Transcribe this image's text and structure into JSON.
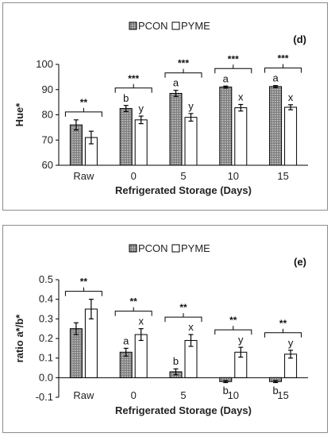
{
  "chart_data": [
    {
      "type": "bar",
      "panel_label": "(d)",
      "categories": [
        "Raw",
        "0",
        "5",
        "10",
        "15"
      ],
      "xlabel": "Refrigerated Storage (Days)",
      "ylabel": "Hue*",
      "ylim": [
        60,
        100
      ],
      "yticks": [
        60,
        70,
        80,
        90,
        100
      ],
      "grid": false,
      "legend_position": "top-center",
      "series": [
        {
          "name": "PCON",
          "values": [
            76,
            82.5,
            88.5,
            91,
            91.2
          ],
          "errors": [
            2,
            1.2,
            1.2,
            0.4,
            0.4
          ],
          "letters": [
            "",
            "b",
            "a",
            "a",
            "a"
          ],
          "style": "dotted-gray"
        },
        {
          "name": "PYME",
          "values": [
            71,
            78,
            79,
            82.8,
            83
          ],
          "errors": [
            2.5,
            1.5,
            1.5,
            1.3,
            1.0
          ],
          "letters": [
            "",
            "y",
            "y",
            "x",
            "x"
          ],
          "style": "white"
        }
      ],
      "significance": [
        "**",
        "***",
        "***",
        "***",
        "***"
      ],
      "colors": {
        "pcon_fill": "#7f7f7f",
        "pyme_fill": "#ffffff",
        "edge": "#000000"
      }
    },
    {
      "type": "bar",
      "panel_label": "(e)",
      "categories": [
        "Raw",
        "0",
        "5",
        "10",
        "15"
      ],
      "xlabel": "Refrigerated Storage (Days)",
      "ylabel": "ratio a*/b*",
      "ylim": [
        -0.1,
        0.5
      ],
      "yticks": [
        -0.1,
        0.0,
        0.1,
        0.2,
        0.3,
        0.4,
        0.5
      ],
      "ytick_labels": [
        "-0.1",
        "0.0",
        "0.1",
        "0.2",
        "0.3",
        "0.4",
        "0.5"
      ],
      "grid": false,
      "legend_position": "top-center",
      "series": [
        {
          "name": "PCON",
          "values": [
            0.25,
            0.13,
            0.03,
            -0.02,
            -0.02
          ],
          "errors": [
            0.03,
            0.02,
            0.015,
            0.005,
            0.005
          ],
          "letters": [
            "",
            "a",
            "b",
            "b",
            "b"
          ],
          "style": "dotted-gray"
        },
        {
          "name": "PYME",
          "values": [
            0.35,
            0.22,
            0.19,
            0.13,
            0.12
          ],
          "errors": [
            0.05,
            0.03,
            0.03,
            0.025,
            0.02
          ],
          "letters": [
            "",
            "x",
            "x",
            "y",
            "y"
          ],
          "style": "white"
        }
      ],
      "significance": [
        "**",
        "**",
        "**",
        "**",
        "**"
      ],
      "colors": {
        "pcon_fill": "#7f7f7f",
        "pyme_fill": "#ffffff",
        "edge": "#000000"
      }
    }
  ]
}
